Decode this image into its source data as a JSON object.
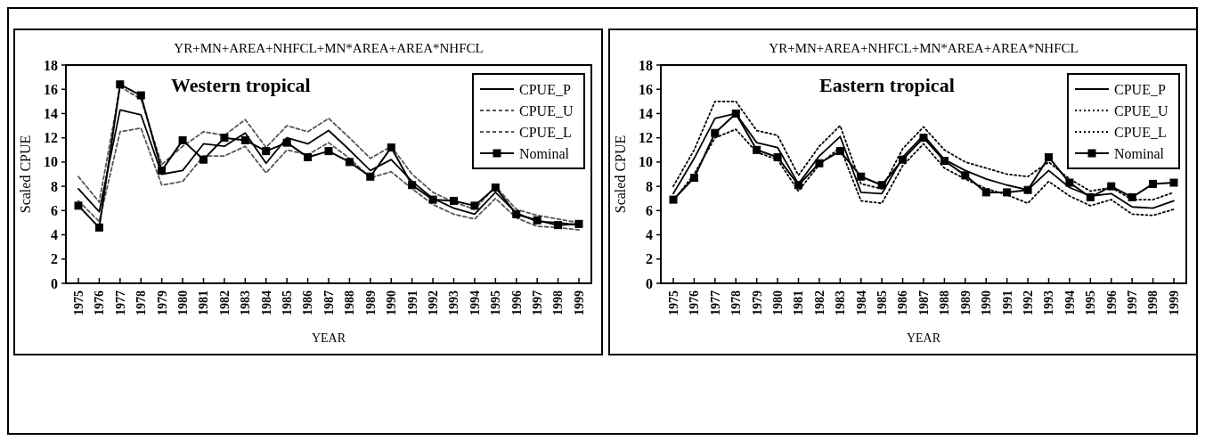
{
  "chart_data": [
    {
      "type": "line",
      "title": "YR+MN+AREA+NHFCL+MN*AREA+AREA*NHFCL",
      "xlabel": "YEAR",
      "ylabel": "Scaled CPUE",
      "annotations": [
        "Western tropical"
      ],
      "categories": [
        "1975",
        "1976",
        "1977",
        "1978",
        "1979",
        "1980",
        "1981",
        "1982",
        "1983",
        "1984",
        "1985",
        "1986",
        "1987",
        "1988",
        "1989",
        "1990",
        "1991",
        "1992",
        "1993",
        "1994",
        "1995",
        "1996",
        "1997",
        "1998",
        "1999"
      ],
      "ylim": [
        0,
        18
      ],
      "yticks": [
        0,
        2,
        4,
        6,
        8,
        10,
        12,
        14,
        16,
        18
      ],
      "grid": false,
      "legend": "top right",
      "series": [
        {
          "name": "CPUE_P",
          "color": "#000000",
          "line_style": "solid",
          "marker": "none",
          "values": [
            7.8,
            5.9,
            14.3,
            13.9,
            9.0,
            9.3,
            11.5,
            11.3,
            12.4,
            9.9,
            12.0,
            11.5,
            12.6,
            11.0,
            9.3,
            10.2,
            8.4,
            7.0,
            6.2,
            5.7,
            7.5,
            5.8,
            5.1,
            5.0,
            4.8
          ]
        },
        {
          "name": "CPUE_U",
          "color": "#555555",
          "line_style": "dashed",
          "marker": "none",
          "values": [
            8.8,
            6.7,
            16.2,
            15.2,
            9.8,
            11.3,
            12.5,
            12.2,
            13.5,
            11.2,
            13.0,
            12.5,
            13.6,
            12.0,
            10.3,
            11.3,
            9.0,
            7.5,
            6.7,
            6.1,
            8.0,
            6.1,
            5.6,
            5.3,
            5.0
          ]
        },
        {
          "name": "CPUE_L",
          "color": "#555555",
          "line_style": "dashed",
          "marker": "none",
          "values": [
            6.8,
            5.1,
            12.5,
            12.8,
            8.1,
            8.4,
            10.5,
            10.5,
            11.3,
            9.1,
            11.0,
            10.6,
            11.6,
            10.3,
            8.7,
            9.2,
            7.8,
            6.5,
            5.7,
            5.3,
            7.0,
            5.4,
            4.7,
            4.6,
            4.4
          ]
        },
        {
          "name": "Nominal",
          "color": "#000000",
          "line_style": "solid",
          "marker": "square",
          "values": [
            6.4,
            4.6,
            16.4,
            15.5,
            9.3,
            11.8,
            10.2,
            12.0,
            11.8,
            10.9,
            11.6,
            10.4,
            10.9,
            10.0,
            8.8,
            11.2,
            8.1,
            6.9,
            6.8,
            6.4,
            7.9,
            5.7,
            5.2,
            4.8,
            4.9
          ]
        }
      ]
    },
    {
      "type": "line",
      "title": "YR+MN+AREA+NHFCL+MN*AREA+AREA*NHFCL",
      "xlabel": "YEAR",
      "ylabel": "Scaled CPUE",
      "annotations": [
        "Eastern tropical"
      ],
      "categories": [
        "1975",
        "1976",
        "1977",
        "1978",
        "1979",
        "1980",
        "1981",
        "1982",
        "1983",
        "1984",
        "1985",
        "1986",
        "1987",
        "1988",
        "1989",
        "1990",
        "1991",
        "1992",
        "1993",
        "1994",
        "1995",
        "1996",
        "1997",
        "1998",
        "1999"
      ],
      "ylim": [
        0,
        18
      ],
      "yticks": [
        0,
        2,
        4,
        6,
        8,
        10,
        12,
        14,
        16,
        18
      ],
      "grid": false,
      "legend": "top right",
      "series": [
        {
          "name": "CPUE_P",
          "color": "#000000",
          "line_style": "solid",
          "marker": "none",
          "values": [
            7.4,
            10.3,
            13.6,
            14.0,
            11.6,
            11.2,
            8.2,
            10.5,
            12.1,
            7.5,
            7.4,
            10.4,
            12.2,
            10.2,
            9.3,
            8.6,
            8.1,
            7.7,
            9.3,
            7.9,
            7.2,
            7.4,
            6.3,
            6.2,
            6.8
          ]
        },
        {
          "name": "CPUE_U",
          "color": "#000000",
          "line_style": "dotted",
          "marker": "none",
          "values": [
            8.0,
            11.0,
            15.0,
            15.0,
            12.6,
            12.2,
            8.9,
            11.3,
            13.0,
            8.2,
            7.8,
            11.1,
            12.9,
            11.0,
            10.0,
            9.5,
            9.0,
            8.8,
            10.0,
            8.6,
            7.6,
            7.9,
            6.9,
            6.9,
            7.5
          ]
        },
        {
          "name": "CPUE_L",
          "color": "#000000",
          "line_style": "dotted",
          "marker": "none",
          "values": [
            6.8,
            9.0,
            12.0,
            12.7,
            10.8,
            10.2,
            7.6,
            9.8,
            11.2,
            6.8,
            6.6,
            9.7,
            11.5,
            9.5,
            8.6,
            7.8,
            7.3,
            6.6,
            8.4,
            7.2,
            6.4,
            6.9,
            5.7,
            5.6,
            6.1
          ]
        },
        {
          "name": "Nominal",
          "color": "#000000",
          "line_style": "solid",
          "marker": "square",
          "values": [
            6.9,
            8.7,
            12.4,
            14.0,
            11.0,
            10.4,
            8.1,
            9.9,
            10.9,
            8.8,
            8.1,
            10.2,
            12.0,
            10.1,
            8.9,
            7.5,
            7.5,
            7.7,
            10.4,
            8.3,
            7.1,
            8.0,
            7.1,
            8.2,
            8.3
          ]
        }
      ]
    }
  ]
}
